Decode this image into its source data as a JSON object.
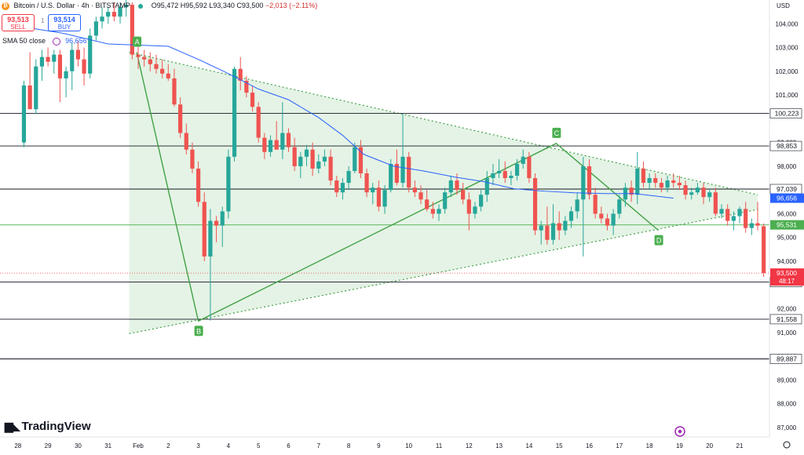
{
  "header": {
    "title": "Bitcoin / U.S. Dollar · 4h · BITSTAMP",
    "ohlc": "O95,472 H95,592 L93,340 C93,500",
    "change": "−2,013 (−2.11%)"
  },
  "trade": {
    "sell_price": "93,513",
    "sell_label": "SELL",
    "buy_price": "93,514",
    "buy_label": "BUY",
    "spread": "1"
  },
  "indicator": {
    "label": "SMA 50 close",
    "value": "96,656"
  },
  "currency": "USD",
  "logo": "TradingView",
  "chart_data": {
    "type": "candlestick",
    "x_tick_labels": [
      "28",
      "29",
      "30",
      "31",
      "Feb",
      "2",
      "3",
      "4",
      "5",
      "6",
      "7",
      "8",
      "9",
      "10",
      "11",
      "12",
      "13",
      "14",
      "15",
      "16",
      "17",
      "18",
      "19",
      "20",
      "21"
    ],
    "y_tick_values": [
      87000,
      88000,
      89000,
      90000,
      91000,
      92000,
      94000,
      95000,
      96000,
      98000,
      99000,
      101000,
      102000,
      103000,
      104000
    ],
    "ylim": [
      86600,
      105000
    ],
    "grid": false,
    "horizontal_levels": [
      {
        "value": 100223,
        "label": "100,223"
      },
      {
        "value": 98853,
        "label": "98,853"
      },
      {
        "value": 97039,
        "label": "97,039"
      },
      {
        "value": 95531,
        "label": "95,531",
        "color": "#4caf50"
      },
      {
        "value": 93121,
        "label": "93,121"
      },
      {
        "value": 91558,
        "label": "91,558"
      },
      {
        "value": 89887,
        "label": "89,887"
      }
    ],
    "price_tags": [
      {
        "value": 96656,
        "label": "96,656",
        "bg": "#2962ff"
      },
      {
        "value": 95531,
        "label": "95,531",
        "bg": "#4caf50"
      },
      {
        "value": 93500,
        "label": "93,500",
        "bg": "#f23645",
        "sub": "48:17"
      }
    ],
    "current_price": 93500,
    "triangle": {
      "upper": [
        [
          -0.3,
          102800
        ],
        [
          20.6,
          96800
        ]
      ],
      "lower": [
        [
          -0.3,
          90950
        ],
        [
          20.6,
          96180
        ]
      ]
    },
    "pattern_points": [
      {
        "label": "A",
        "x": -0.05,
        "y": 102800
      },
      {
        "label": "B",
        "x": 2.0,
        "y": 91480
      },
      {
        "label": "C",
        "x": 13.9,
        "y": 98960
      },
      {
        "label": "D",
        "x": 17.3,
        "y": 95300
      }
    ],
    "sma50": [
      [
        -4.0,
        103900
      ],
      [
        -2.5,
        103600
      ],
      [
        -1.0,
        103150
      ],
      [
        0.0,
        103100
      ],
      [
        1.0,
        103050
      ],
      [
        2.0,
        102500
      ],
      [
        3.0,
        101900
      ],
      [
        4.0,
        101250
      ],
      [
        5.0,
        100800
      ],
      [
        6.0,
        100050
      ],
      [
        6.8,
        99300
      ],
      [
        7.5,
        98500
      ],
      [
        8.5,
        98000
      ],
      [
        9.5,
        97800
      ],
      [
        10.5,
        97550
      ],
      [
        11.5,
        97350
      ],
      [
        12.5,
        97050
      ],
      [
        13.5,
        96950
      ],
      [
        14.5,
        96880
      ],
      [
        15.5,
        96850
      ],
      [
        16.5,
        96850
      ],
      [
        17.5,
        96700
      ],
      [
        17.8,
        96656
      ]
    ],
    "candles": [
      [
        -3.8,
        99000,
        101600,
        98800,
        101400
      ],
      [
        -3.6,
        101400,
        102800,
        100500,
        100400
      ],
      [
        -3.4,
        100400,
        102500,
        100200,
        102200
      ],
      [
        -3.2,
        102200,
        102900,
        101600,
        102600
      ],
      [
        -3.0,
        102600,
        103000,
        102200,
        102400
      ],
      [
        -2.8,
        102400,
        102900,
        101900,
        102700
      ],
      [
        -2.6,
        102700,
        102900,
        100700,
        101700
      ],
      [
        -2.4,
        101700,
        102200,
        100900,
        102000
      ],
      [
        -2.2,
        102000,
        103200,
        101200,
        102900
      ],
      [
        -2.0,
        102900,
        103300,
        102200,
        102500
      ],
      [
        -1.8,
        102500,
        103000,
        101400,
        101900
      ],
      [
        -1.6,
        101900,
        103800,
        101700,
        103500
      ],
      [
        -1.4,
        103500,
        104300,
        103300,
        104100
      ],
      [
        -1.2,
        104100,
        104700,
        103800,
        104300
      ],
      [
        -1.0,
        104300,
        104700,
        104000,
        104500
      ],
      [
        -0.8,
        104500,
        104900,
        104100,
        104300
      ],
      [
        -0.6,
        104300,
        104900,
        104000,
        104700
      ],
      [
        -0.4,
        104700,
        105000,
        104300,
        104800
      ],
      [
        -0.2,
        104800,
        104900,
        102500,
        102700
      ],
      [
        0.0,
        102700,
        103200,
        102100,
        102600
      ],
      [
        0.2,
        102600,
        102900,
        102200,
        102500
      ],
      [
        0.4,
        102500,
        102800,
        102000,
        102300
      ],
      [
        0.6,
        102300,
        102700,
        101900,
        102100
      ],
      [
        0.8,
        102100,
        102500,
        101700,
        101900
      ],
      [
        1.0,
        101900,
        102300,
        101600,
        101700
      ],
      [
        1.2,
        101700,
        102100,
        100500,
        100600
      ],
      [
        1.4,
        100600,
        100900,
        99200,
        99400
      ],
      [
        1.6,
        99400,
        99800,
        98500,
        98700
      ],
      [
        1.8,
        98700,
        99000,
        97700,
        97900
      ],
      [
        2.0,
        97900,
        98200,
        96300,
        96500
      ],
      [
        2.2,
        96500,
        96900,
        94000,
        94200
      ],
      [
        2.4,
        94200,
        96200,
        91500,
        95700
      ],
      [
        2.6,
        95700,
        95900,
        94800,
        95500
      ],
      [
        2.8,
        95500,
        96300,
        94600,
        96100
      ],
      [
        3.0,
        96100,
        98700,
        95800,
        98400
      ],
      [
        3.2,
        98400,
        102200,
        98200,
        102100
      ],
      [
        3.4,
        102100,
        102600,
        101200,
        101600
      ],
      [
        3.6,
        101600,
        101800,
        100900,
        101100
      ],
      [
        3.8,
        101100,
        101400,
        100300,
        100500
      ],
      [
        4.0,
        100500,
        100700,
        99000,
        99200
      ],
      [
        4.2,
        99200,
        99400,
        98300,
        98600
      ],
      [
        4.4,
        98600,
        99300,
        98400,
        99100
      ],
      [
        4.6,
        99100,
        99900,
        98700,
        98700
      ],
      [
        4.8,
        98700,
        100700,
        98300,
        99400
      ],
      [
        5.0,
        99400,
        99600,
        98600,
        98800
      ],
      [
        5.2,
        98800,
        99200,
        97800,
        98000
      ],
      [
        5.4,
        98000,
        98600,
        97500,
        98400
      ],
      [
        5.6,
        98400,
        98900,
        98000,
        98700
      ],
      [
        5.8,
        98700,
        99000,
        97600,
        97900
      ],
      [
        6.0,
        97900,
        98500,
        97700,
        98200
      ],
      [
        6.2,
        98200,
        98700,
        98000,
        98400
      ],
      [
        6.4,
        98400,
        98700,
        97200,
        97400
      ],
      [
        6.6,
        97400,
        97600,
        96700,
        96900
      ],
      [
        6.8,
        96900,
        97500,
        96600,
        97300
      ],
      [
        7.0,
        97300,
        98000,
        97000,
        97800
      ],
      [
        7.2,
        97800,
        99000,
        97700,
        98800
      ],
      [
        7.4,
        98800,
        99100,
        97500,
        97700
      ],
      [
        7.6,
        97700,
        97900,
        96700,
        96900
      ],
      [
        7.8,
        96900,
        97300,
        96400,
        97100
      ],
      [
        8.0,
        97100,
        97400,
        96100,
        96300
      ],
      [
        8.2,
        96300,
        97200,
        96000,
        97000
      ],
      [
        8.4,
        97000,
        98300,
        96900,
        98100
      ],
      [
        8.6,
        98100,
        98700,
        97200,
        97300
      ],
      [
        8.8,
        97300,
        100200,
        97100,
        98400
      ],
      [
        9.0,
        98400,
        98600,
        96900,
        97100
      ],
      [
        9.2,
        97100,
        97400,
        96700,
        96900
      ],
      [
        9.4,
        96900,
        97200,
        96400,
        96600
      ],
      [
        9.6,
        96600,
        97000,
        96100,
        96200
      ],
      [
        9.8,
        96200,
        96500,
        95800,
        96000
      ],
      [
        10.0,
        96000,
        96400,
        95700,
        96200
      ],
      [
        10.2,
        96200,
        97100,
        96000,
        96900
      ],
      [
        10.4,
        96900,
        97600,
        96700,
        97400
      ],
      [
        10.6,
        97400,
        97700,
        96800,
        97000
      ],
      [
        10.8,
        97000,
        97300,
        96400,
        96600
      ],
      [
        11.0,
        96600,
        96900,
        95300,
        96000
      ],
      [
        11.2,
        96000,
        96500,
        95800,
        96300
      ],
      [
        11.4,
        96300,
        97000,
        96100,
        96800
      ],
      [
        11.6,
        96800,
        97800,
        96500,
        97500
      ],
      [
        11.8,
        97500,
        98100,
        97200,
        97700
      ],
      [
        12.0,
        97700,
        98300,
        97500,
        97800
      ],
      [
        12.2,
        97800,
        98200,
        97300,
        97500
      ],
      [
        12.4,
        97500,
        97800,
        97200,
        97600
      ],
      [
        12.6,
        97600,
        98300,
        97400,
        98100
      ],
      [
        12.8,
        98100,
        98700,
        97900,
        98400
      ],
      [
        13.0,
        98400,
        98600,
        97300,
        97500
      ],
      [
        13.2,
        97500,
        97700,
        95100,
        95300
      ],
      [
        13.4,
        95300,
        95700,
        94700,
        95500
      ],
      [
        13.6,
        95500,
        96300,
        94700,
        94900
      ],
      [
        13.8,
        94900,
        96400,
        94700,
        95600
      ],
      [
        14.0,
        95600,
        96100,
        94900,
        95300
      ],
      [
        14.2,
        95300,
        95900,
        95100,
        95700
      ],
      [
        14.4,
        95700,
        96300,
        95400,
        96100
      ],
      [
        14.6,
        96100,
        96900,
        95800,
        96600
      ],
      [
        14.8,
        96600,
        98400,
        94200,
        98000
      ],
      [
        15.0,
        98000,
        98300,
        96600,
        96800
      ],
      [
        15.2,
        96800,
        97100,
        95800,
        96000
      ],
      [
        15.4,
        96000,
        96300,
        95600,
        95800
      ],
      [
        15.6,
        95800,
        96000,
        95300,
        95500
      ],
      [
        15.8,
        95500,
        96200,
        95100,
        96000
      ],
      [
        16.0,
        96000,
        96800,
        95800,
        96600
      ],
      [
        16.2,
        96600,
        97300,
        96300,
        97100
      ],
      [
        16.4,
        97100,
        97400,
        96500,
        96800
      ],
      [
        16.6,
        96800,
        98600,
        96400,
        97900
      ],
      [
        16.8,
        97900,
        98200,
        97100,
        97300
      ],
      [
        17.0,
        97300,
        97700,
        97000,
        97500
      ],
      [
        17.2,
        97500,
        97700,
        97100,
        97300
      ],
      [
        17.4,
        97300,
        97500,
        96900,
        97100
      ],
      [
        17.6,
        97100,
        97600,
        96900,
        97400
      ],
      [
        17.8,
        97400,
        97700,
        97100,
        97300
      ],
      [
        18.0,
        97300,
        97600,
        97000,
        97200
      ],
      [
        18.2,
        97200,
        97400,
        96600,
        96800
      ],
      [
        18.4,
        96800,
        97100,
        96600,
        96900
      ],
      [
        18.6,
        96900,
        97300,
        96800,
        97100
      ],
      [
        18.8,
        97100,
        97300,
        96400,
        96700
      ],
      [
        19.0,
        96700,
        97000,
        96500,
        96900
      ],
      [
        19.2,
        96900,
        97100,
        95900,
        96000
      ],
      [
        19.4,
        96000,
        96400,
        95800,
        96200
      ],
      [
        19.6,
        96200,
        96400,
        95500,
        95700
      ],
      [
        19.8,
        95700,
        96100,
        95300,
        95900
      ],
      [
        20.0,
        95900,
        96300,
        95600,
        96200
      ],
      [
        20.2,
        96200,
        96500,
        95200,
        95400
      ],
      [
        20.4,
        95400,
        95800,
        95100,
        95600
      ],
      [
        20.6,
        95600,
        96500,
        95300,
        95500
      ],
      [
        20.8,
        95472,
        95592,
        93340,
        93500
      ]
    ]
  }
}
